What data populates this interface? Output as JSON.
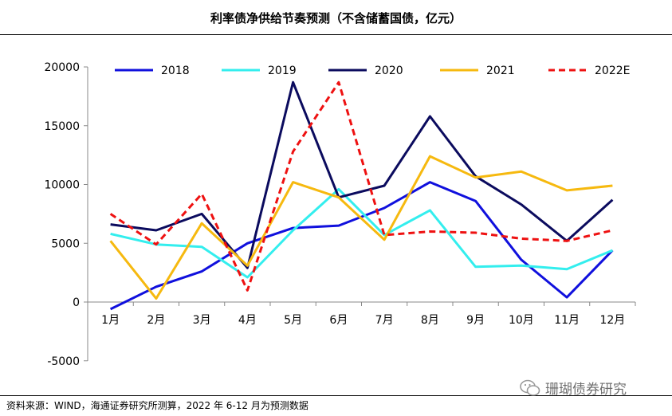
{
  "title": "利率债净供给节奏预测（不含储蓄国债，亿元）",
  "source": "资料来源：WIND，海通证券研究所测算，2022 年 6-12 月为预测数据",
  "watermark": "珊瑚债券研究",
  "chart_data": {
    "type": "line",
    "title": "利率债净供给节奏预测（不含储蓄国债，亿元）",
    "categories": [
      "1月",
      "2月",
      "3月",
      "4月",
      "5月",
      "6月",
      "7月",
      "8月",
      "9月",
      "10月",
      "11月",
      "12月"
    ],
    "y_ticks": [
      "20000",
      "15000",
      "10000",
      "5000",
      "0",
      "-5000"
    ],
    "ylim": [
      -5000,
      20000
    ],
    "grid": false,
    "legend_position": "top",
    "series": [
      {
        "name": "2018",
        "color": "#1010dd",
        "dashed": false,
        "values": [
          -600,
          1300,
          2600,
          5000,
          6300,
          6500,
          8000,
          10200,
          8600,
          3600,
          400,
          4400
        ]
      },
      {
        "name": "2019",
        "color": "#33eeee",
        "dashed": false,
        "values": [
          5800,
          4900,
          4700,
          2100,
          6100,
          9600,
          5700,
          7800,
          3000,
          3100,
          2800,
          4400
        ]
      },
      {
        "name": "2020",
        "color": "#0b0b5e",
        "dashed": false,
        "values": [
          6600,
          6100,
          7500,
          2900,
          18700,
          8900,
          9900,
          15800,
          10700,
          8300,
          5200,
          8700
        ]
      },
      {
        "name": "2021",
        "color": "#f6b90f",
        "dashed": false,
        "values": [
          5200,
          300,
          6700,
          3100,
          10200,
          8900,
          5300,
          12400,
          10600,
          11100,
          9500,
          9900
        ]
      },
      {
        "name": "2022E",
        "color": "#ee1111",
        "dashed": true,
        "values": [
          7500,
          4900,
          9200,
          1000,
          12800,
          18700,
          5700,
          6000,
          5900,
          5400,
          5200,
          6100
        ]
      }
    ]
  }
}
